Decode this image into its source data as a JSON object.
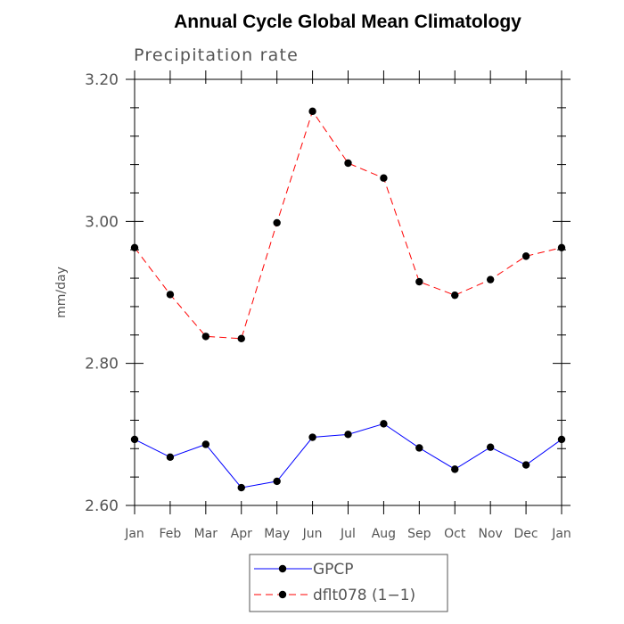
{
  "chart_data": {
    "type": "line",
    "title": "Annual Cycle Global Mean Climatology",
    "subtitle": "Precipitation rate",
    "ylabel": "mm/day",
    "xlabel": "",
    "categories": [
      "Jan",
      "Feb",
      "Mar",
      "Apr",
      "May",
      "Jun",
      "Jul",
      "Aug",
      "Sep",
      "Oct",
      "Nov",
      "Dec",
      "Jan"
    ],
    "ylim": [
      2.6,
      3.2
    ],
    "yticks": [
      "2.60",
      "2.80",
      "3.00",
      "3.20"
    ],
    "series": [
      {
        "name": "GPCP",
        "color": "#0000ff",
        "dash": "solid",
        "values": [
          2.693,
          2.668,
          2.686,
          2.625,
          2.634,
          2.696,
          2.7,
          2.715,
          2.681,
          2.651,
          2.682,
          2.657,
          2.693
        ]
      },
      {
        "name": "dflt078 (1−1)",
        "color": "#ff0000",
        "dash": "dashed",
        "values": [
          2.963,
          2.897,
          2.838,
          2.835,
          2.998,
          3.155,
          3.082,
          3.061,
          2.915,
          2.896,
          2.918,
          2.951,
          2.963
        ]
      }
    ]
  }
}
